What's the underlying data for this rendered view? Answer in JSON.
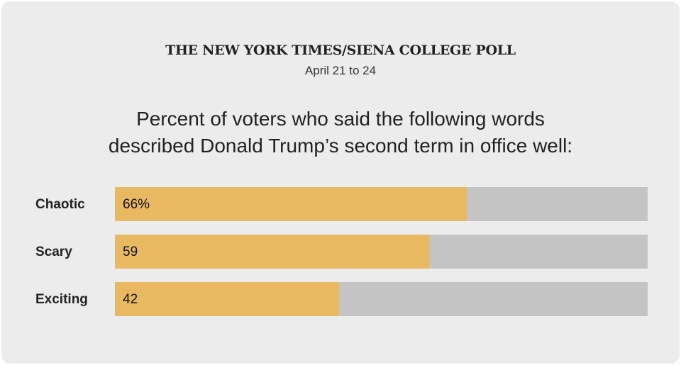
{
  "header": {
    "kicker": "THE NEW YORK TIMES/SIENA COLLEGE POLL",
    "dates": "April 21 to 24",
    "headline_line1": "Percent of voters who said the following words",
    "headline_line2": "described Donald Trump’s second term in office well:"
  },
  "chart_data": {
    "type": "bar",
    "orientation": "horizontal",
    "title": "Percent of voters who said the following words described Donald Trump’s second term in office well:",
    "categories": [
      "Chaotic",
      "Scary",
      "Exciting"
    ],
    "values": [
      66,
      59,
      42
    ],
    "value_labels": [
      "66%",
      "59",
      "42"
    ],
    "xlim": [
      0,
      100
    ],
    "grid": false,
    "legend": "none",
    "colors": {
      "bar": "#e8b961",
      "track": "#c4c4c4"
    }
  }
}
